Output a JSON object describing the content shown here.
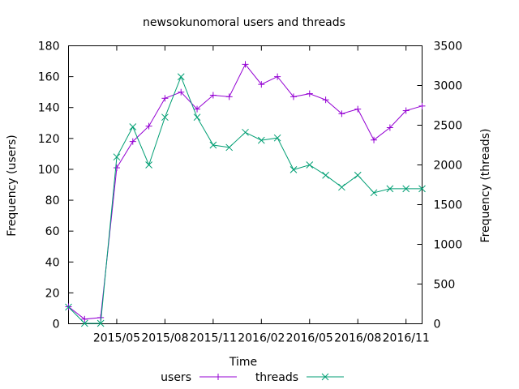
{
  "chart_data": {
    "type": "line",
    "title": "newsokunomoral users and threads",
    "xlabel": "Time",
    "ylabel": "Frequency (users)",
    "y2label": "Frequency (threads)",
    "x_ticks": [
      "2015/05",
      "2015/08",
      "2015/11",
      "2016/02",
      "2016/05",
      "2016/08",
      "2016/11"
    ],
    "x": [
      "2015/02",
      "2015/03",
      "2015/04",
      "2015/05",
      "2015/06",
      "2015/07",
      "2015/08",
      "2015/09",
      "2015/10",
      "2015/11",
      "2015/12",
      "2016/01",
      "2016/02",
      "2016/03",
      "2016/04",
      "2016/05",
      "2016/06",
      "2016/07",
      "2016/08",
      "2016/09",
      "2016/10",
      "2016/11",
      "2016/12"
    ],
    "ylim": [
      0,
      180
    ],
    "y_ticks": [
      0,
      20,
      40,
      60,
      80,
      100,
      120,
      140,
      160,
      180
    ],
    "y2lim": [
      0,
      3500
    ],
    "y2_ticks": [
      0,
      500,
      1000,
      1500,
      2000,
      2500,
      3000,
      3500
    ],
    "legend_position": "bottom",
    "series": [
      {
        "name": "users",
        "axis": "left",
        "color": "#9400d3",
        "marker": "plus",
        "values": [
          11,
          3,
          4,
          101,
          118,
          128,
          146,
          150,
          139,
          148,
          147,
          168,
          155,
          160,
          147,
          149,
          145,
          136,
          139,
          119,
          127,
          138,
          141
        ]
      },
      {
        "name": "threads",
        "axis": "right",
        "color": "#009e73",
        "marker": "cross",
        "values": [
          210,
          5,
          5,
          2100,
          2480,
          2000,
          2600,
          3110,
          2600,
          2250,
          2220,
          2410,
          2310,
          2340,
          1940,
          2000,
          1870,
          1720,
          1870,
          1650,
          1700,
          1700,
          1700
        ]
      }
    ]
  }
}
